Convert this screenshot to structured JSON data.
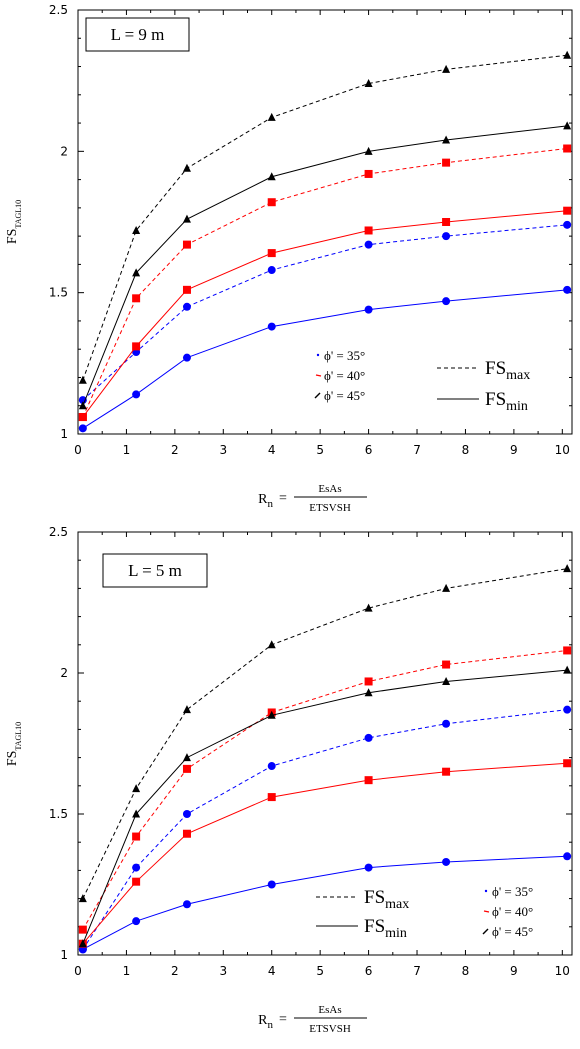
{
  "chart_data": [
    {
      "type": "line",
      "panel_label": "L = 9 m",
      "ylabel": "FS",
      "ylabel_sub": "TAGL10",
      "xlabel_lhs": "R",
      "xlabel_lhs_sub": "n",
      "xlabel_eq": "=",
      "xlabel_num": "EsAs",
      "xlabel_den": "ETSVSH",
      "xlim": [
        0,
        10.2
      ],
      "ylim": [
        1,
        2.5
      ],
      "xticks": [
        "0",
        "1",
        "2",
        "3",
        "4",
        "5",
        "6",
        "7",
        "8",
        "9",
        "10"
      ],
      "yticks": [
        "1",
        "1.5",
        "2",
        "2.5"
      ],
      "x": [
        0.1,
        1.2,
        2.25,
        4.0,
        6.0,
        7.6,
        10.1
      ],
      "legend_markers": [
        {
          "label": "ϕ' = 35°",
          "color": "#0000ff"
        },
        {
          "label": "ϕ' = 40°",
          "color": "#ff0000"
        },
        {
          "label": "ϕ' = 45°",
          "color": "#000000"
        }
      ],
      "legend_lines": [
        {
          "label": "FS",
          "sub": "max",
          "style": "dashed"
        },
        {
          "label": "FS",
          "sub": "min",
          "style": "solid"
        }
      ],
      "series": [
        {
          "phi": "35",
          "kind": "max",
          "color": "#0000ff",
          "marker": "circle",
          "values": [
            1.12,
            1.29,
            1.45,
            1.58,
            1.67,
            1.7,
            1.74
          ]
        },
        {
          "phi": "35",
          "kind": "min",
          "color": "#0000ff",
          "marker": "circle",
          "values": [
            1.02,
            1.14,
            1.27,
            1.38,
            1.44,
            1.47,
            1.51
          ]
        },
        {
          "phi": "40",
          "kind": "max",
          "color": "#ff0000",
          "marker": "square",
          "values": [
            1.06,
            1.48,
            1.67,
            1.82,
            1.92,
            1.96,
            2.01
          ]
        },
        {
          "phi": "40",
          "kind": "min",
          "color": "#ff0000",
          "marker": "square",
          "values": [
            1.06,
            1.31,
            1.51,
            1.64,
            1.72,
            1.75,
            1.79
          ]
        },
        {
          "phi": "45",
          "kind": "max",
          "color": "#000000",
          "marker": "triangle",
          "values": [
            1.19,
            1.72,
            1.94,
            2.12,
            2.24,
            2.29,
            2.34
          ]
        },
        {
          "phi": "45",
          "kind": "min",
          "color": "#000000",
          "marker": "triangle",
          "values": [
            1.1,
            1.57,
            1.76,
            1.91,
            2.0,
            2.04,
            2.09
          ]
        }
      ]
    },
    {
      "type": "line",
      "panel_label": "L = 5 m",
      "ylabel": "FS",
      "ylabel_sub": "TAGL10",
      "xlabel_lhs": "R",
      "xlabel_lhs_sub": "n",
      "xlabel_eq": "=",
      "xlabel_num": "EsAs",
      "xlabel_den": "ETSVSH",
      "xlim": [
        0,
        10.2
      ],
      "ylim": [
        1,
        2.5
      ],
      "xticks": [
        "0",
        "1",
        "2",
        "3",
        "4",
        "5",
        "6",
        "7",
        "8",
        "9",
        "10"
      ],
      "yticks": [
        "1",
        "1.5",
        "2",
        "2.5"
      ],
      "x": [
        0.1,
        1.2,
        2.25,
        4.0,
        6.0,
        7.6,
        10.1
      ],
      "legend_markers": [
        {
          "label": "ϕ' = 35°",
          "color": "#0000ff"
        },
        {
          "label": "ϕ' = 40°",
          "color": "#ff0000"
        },
        {
          "label": "ϕ' = 45°",
          "color": "#000000"
        }
      ],
      "legend_lines": [
        {
          "label": "FS",
          "sub": "max",
          "style": "dashed"
        },
        {
          "label": "FS",
          "sub": "min",
          "style": "solid"
        }
      ],
      "series": [
        {
          "phi": "35",
          "kind": "max",
          "color": "#0000ff",
          "marker": "circle",
          "values": [
            1.02,
            1.31,
            1.5,
            1.67,
            1.77,
            1.82,
            1.87
          ]
        },
        {
          "phi": "35",
          "kind": "min",
          "color": "#0000ff",
          "marker": "circle",
          "values": [
            1.02,
            1.12,
            1.18,
            1.25,
            1.31,
            1.33,
            1.35
          ]
        },
        {
          "phi": "40",
          "kind": "max",
          "color": "#ff0000",
          "marker": "square",
          "values": [
            1.09,
            1.42,
            1.66,
            1.86,
            1.97,
            2.03,
            2.08
          ]
        },
        {
          "phi": "40",
          "kind": "min",
          "color": "#ff0000",
          "marker": "square",
          "values": [
            1.04,
            1.26,
            1.43,
            1.56,
            1.62,
            1.65,
            1.68
          ]
        },
        {
          "phi": "45",
          "kind": "max",
          "color": "#000000",
          "marker": "triangle",
          "values": [
            1.2,
            1.59,
            1.87,
            2.1,
            2.23,
            2.3,
            2.37
          ]
        },
        {
          "phi": "45",
          "kind": "min",
          "color": "#000000",
          "marker": "triangle",
          "values": [
            1.04,
            1.5,
            1.7,
            1.85,
            1.93,
            1.97,
            2.01
          ]
        }
      ]
    }
  ]
}
